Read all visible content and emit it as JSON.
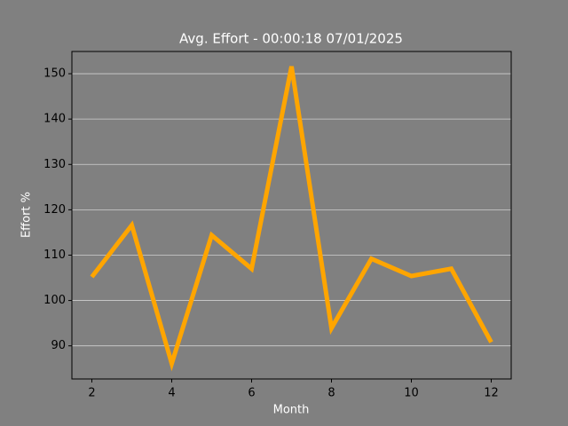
{
  "chart_data": {
    "type": "line",
    "title": "Avg. Effort - 00:00:18 07/01/2025",
    "xlabel": "Month",
    "ylabel": "Effort %",
    "x": [
      2,
      3,
      4,
      5,
      6,
      7,
      8,
      9,
      10,
      11,
      12
    ],
    "series": [
      {
        "color": "#ffa500",
        "values": [
          105.2,
          116.6,
          86.1,
          114.4,
          107,
          151.6,
          93.9,
          109.2,
          105.4,
          107,
          90.8
        ]
      }
    ],
    "xlim": [
      1.5,
      12.5
    ],
    "xticks": [
      2,
      4,
      6,
      8,
      10,
      12
    ],
    "ylim": [
      82.7,
      154.9
    ],
    "yticks": [
      90,
      100,
      110,
      120,
      130,
      140,
      150
    ],
    "grid": true
  }
}
